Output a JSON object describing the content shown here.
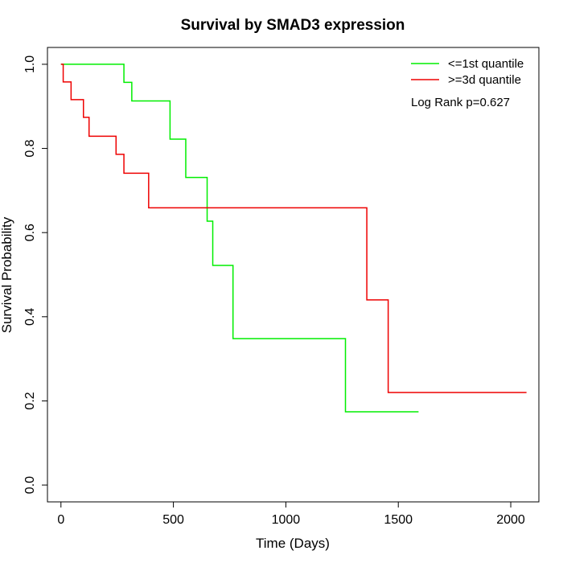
{
  "chart_data": {
    "type": "line",
    "subtype": "kaplan-meier step",
    "title": "Survival by SMAD3 expression",
    "xlabel": "Time (Days)",
    "ylabel": "Survival Probability",
    "xlim": [
      -60,
      2125
    ],
    "ylim": [
      -0.04,
      1.04
    ],
    "x_ticks": [
      0,
      500,
      1000,
      1500,
      2000
    ],
    "x_tick_labels": [
      "0",
      "500",
      "1000",
      "1500",
      "2000"
    ],
    "y_ticks": [
      0.0,
      0.2,
      0.4,
      0.6,
      0.8,
      1.0
    ],
    "y_tick_labels": [
      "0.0",
      "0.2",
      "0.4",
      "0.6",
      "0.8",
      "1.0"
    ],
    "grid": false,
    "legend_position": "top-right",
    "series": [
      {
        "name": "<=1st quantile",
        "color": "#00ee00",
        "steps": [
          [
            0,
            1.0
          ],
          [
            280,
            0.957
          ],
          [
            315,
            0.913
          ],
          [
            485,
            0.822
          ],
          [
            555,
            0.731
          ],
          [
            650,
            0.627
          ],
          [
            675,
            0.522
          ],
          [
            765,
            0.348
          ],
          [
            1265,
            0.174
          ],
          [
            1590,
            0.174
          ]
        ]
      },
      {
        "name": ">=3d quantile",
        "color": "#ee0000",
        "steps": [
          [
            0,
            1.0
          ],
          [
            10,
            0.958
          ],
          [
            45,
            0.916
          ],
          [
            100,
            0.874
          ],
          [
            125,
            0.829
          ],
          [
            245,
            0.786
          ],
          [
            280,
            0.741
          ],
          [
            390,
            0.659
          ],
          [
            1360,
            0.44
          ],
          [
            1455,
            0.22
          ],
          [
            2070,
            0.22
          ]
        ]
      }
    ],
    "annotation": "Log Rank p=0.627"
  }
}
